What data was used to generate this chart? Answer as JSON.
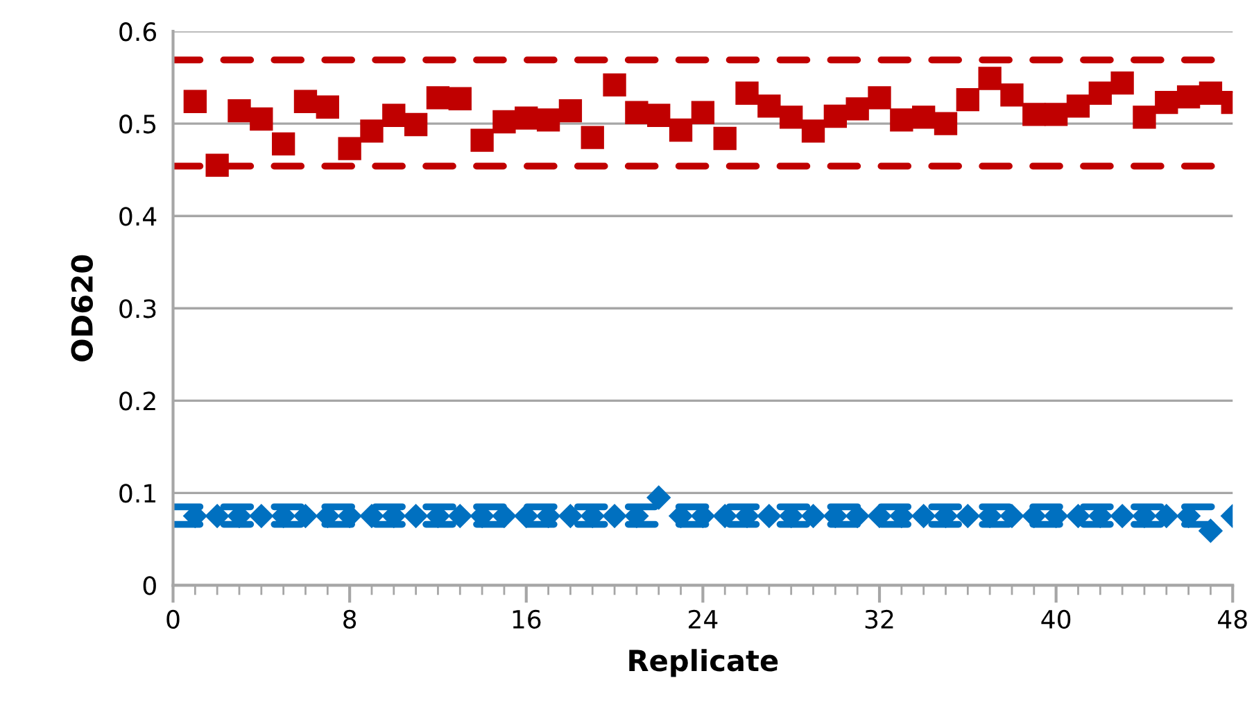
{
  "chart_data": {
    "type": "scatter",
    "xlabel": "Replicate",
    "ylabel": "OD620",
    "x": [
      1,
      2,
      3,
      4,
      5,
      6,
      7,
      8,
      9,
      10,
      11,
      12,
      13,
      14,
      15,
      16,
      17,
      18,
      19,
      20,
      21,
      22,
      23,
      24,
      25,
      26,
      27,
      28,
      29,
      30,
      31,
      32,
      33,
      34,
      35,
      36,
      37,
      38,
      39,
      40,
      41,
      42,
      43,
      44,
      45,
      46,
      47,
      48
    ],
    "series": [
      {
        "color": "#c00000",
        "marker": "square",
        "values": [
          0.524,
          0.455,
          0.514,
          0.505,
          0.478,
          0.524,
          0.518,
          0.473,
          0.492,
          0.509,
          0.499,
          0.528,
          0.527,
          0.482,
          0.502,
          0.506,
          0.504,
          0.514,
          0.485,
          0.542,
          0.512,
          0.509,
          0.493,
          0.512,
          0.484,
          0.533,
          0.519,
          0.507,
          0.492,
          0.508,
          0.516,
          0.528,
          0.504,
          0.507,
          0.5,
          0.526,
          0.549,
          0.531,
          0.51,
          0.51,
          0.519,
          0.533,
          0.544,
          0.507,
          0.523,
          0.529,
          0.533,
          0.523
        ]
      },
      {
        "color": "#0070c0",
        "marker": "diamond",
        "values": [
          0.075,
          0.075,
          0.075,
          0.075,
          0.075,
          0.075,
          0.075,
          0.075,
          0.075,
          0.075,
          0.075,
          0.075,
          0.075,
          0.075,
          0.075,
          0.075,
          0.075,
          0.075,
          0.075,
          0.075,
          0.075,
          0.095,
          0.075,
          0.075,
          0.075,
          0.075,
          0.075,
          0.075,
          0.075,
          0.075,
          0.075,
          0.075,
          0.075,
          0.075,
          0.075,
          0.075,
          0.075,
          0.075,
          0.075,
          0.075,
          0.075,
          0.075,
          0.075,
          0.075,
          0.075,
          0.075,
          0.059,
          0.075
        ]
      }
    ],
    "ref_lines": [
      {
        "axis": "y",
        "value": 0.569,
        "color": "#c00000",
        "line_style": "dashed"
      },
      {
        "axis": "y",
        "value": 0.454,
        "color": "#c00000",
        "line_style": "dashed"
      },
      {
        "axis": "y",
        "value": 0.085,
        "color": "#0070c0",
        "line_style": "dashed"
      },
      {
        "axis": "y",
        "value": 0.066,
        "color": "#0070c0",
        "line_style": "dashed"
      }
    ],
    "xlim": [
      0,
      48
    ],
    "xticks": [
      0,
      8,
      16,
      24,
      32,
      40,
      48
    ],
    "ylim": [
      0,
      0.6
    ],
    "yticks": [
      0,
      0.1,
      0.2,
      0.3,
      0.4,
      0.5,
      0.6
    ],
    "grid": "y"
  }
}
